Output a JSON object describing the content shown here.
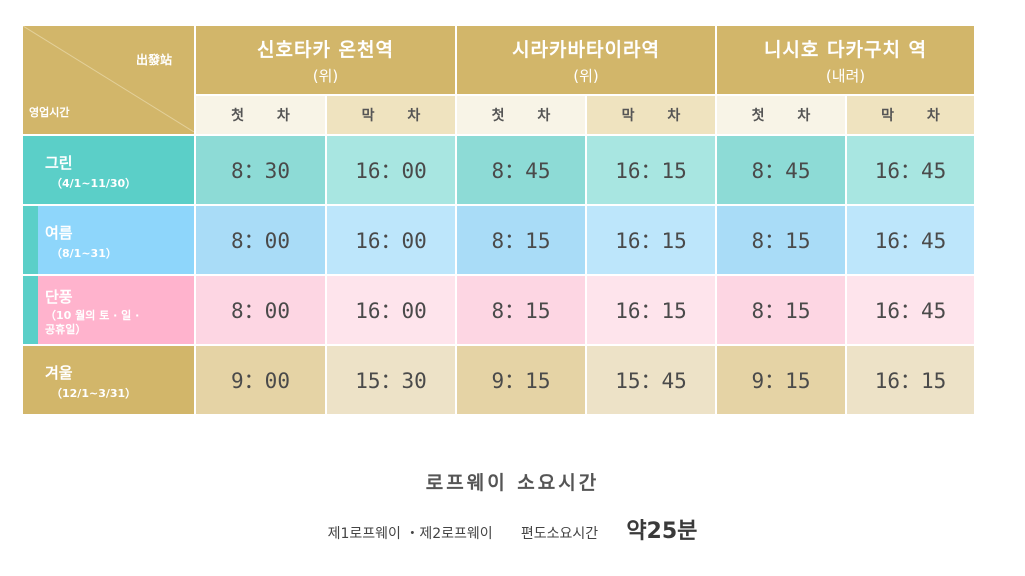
{
  "table": {
    "corner": {
      "station_label": "出發站",
      "hours_label": "영업시간"
    },
    "stations": [
      {
        "name": "신호타카 온천역",
        "direction": "(위)",
        "first": "첫 차",
        "last": "막 차"
      },
      {
        "name": "시라카바타이라역",
        "direction": "(위)",
        "first": "첫 차",
        "last": "막 차"
      },
      {
        "name": "니시호 다카구치 역",
        "direction": "(내려)",
        "first": "첫 차",
        "last": "막 차"
      }
    ],
    "seasons": [
      {
        "name": "그린",
        "range": "（4/1~11/30）",
        "color": "#5bcfc8",
        "times": [
          "8：30",
          "16：00",
          "8：45",
          "16：15",
          "8：45",
          "16：45"
        ]
      },
      {
        "name": "여름",
        "range": "（8/1~31）",
        "color": "#8ed6fb",
        "times": [
          "8：00",
          "16：00",
          "8：15",
          "16：15",
          "8：15",
          "16：45"
        ]
      },
      {
        "name": "단풍",
        "range": "（10 월의 토 · 일 · 공휴일）",
        "color": "#ffb3cd",
        "times": [
          "8：00",
          "16：00",
          "8：15",
          "16：15",
          "8：15",
          "16：45"
        ]
      },
      {
        "name": "겨울",
        "range": "（12/1~3/31）",
        "color": "#d2b66a",
        "times": [
          "9：00",
          "15：30",
          "9：15",
          "15：45",
          "9：15",
          "16：15"
        ]
      }
    ]
  },
  "footer": {
    "title": "로프웨이 소요시간",
    "routes": "제1로프웨이 ・제2로프웨이",
    "label": "편도소요시간",
    "value": "약25분"
  },
  "colors": {
    "gold": "#d2b66a",
    "green_first": "#8ddbd6",
    "green_last": "#a8e6e1",
    "summer_first": "#a9dcf7",
    "summer_last": "#bde6fb",
    "autumn_first": "#fdd6e3",
    "autumn_last": "#fee4ec",
    "winter_first": "#e5d3a5",
    "winter_last": "#ede2c7"
  }
}
